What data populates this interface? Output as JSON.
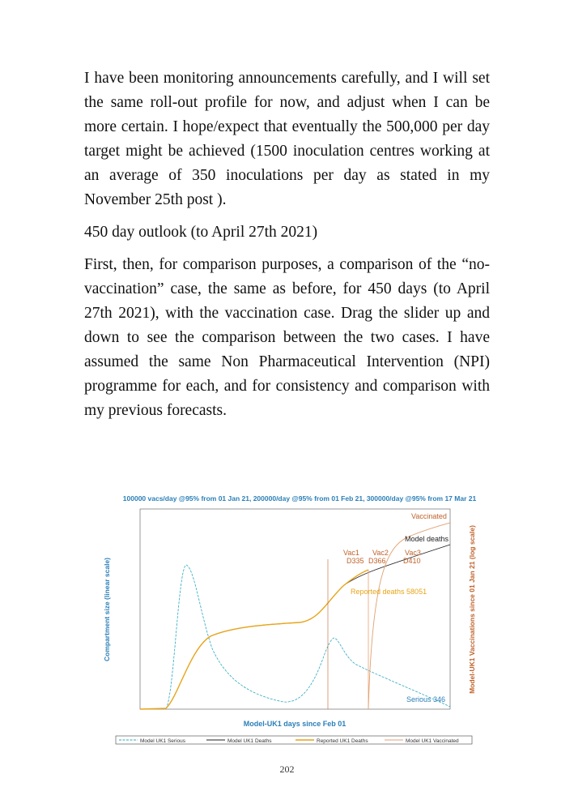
{
  "paragraphs": [
    "I have been monitoring announcements carefully, and I will set the same roll-out profile for now, and adjust when I can be more certain. I hope/expect that eventually the 500,000 per day target might be achieved (1500 inoculation centres working at an average of 350 inoculations per day as stated in my November 25th post ).",
    "450 day outlook (to April 27th 2021)",
    "First, then, for comparison purposes, a comparison of the “no-vaccination” case, the same as before, for 450 days (to April 27th 2021), with the vaccination case. Drag the slider up and down to see the comparison between the two cases. I have assumed the same Non Pharmaceutical Intervention (NPI) programme for each, and for consistency and comparison with my previous forecasts."
  ],
  "figure": {
    "title": "100000 vacs/day @95% from 01 Jan 21, 200000/day @95% from 01 Feb 21, 300000/day @95% from 17 Mar 21",
    "y_label": "Compartment size (linear scale)",
    "y2_label": "Model-UK1 Vaccinations since 01 Jan 21 (log scale)",
    "x_label": "Model-UK1 days since Feb 01",
    "annotations": [
      "Vaccinated",
      "Model deaths",
      "Vac1",
      "Vac2",
      "Vac3",
      "D335",
      "D366",
      "D410",
      "Reported deaths 58051",
      "Serious 346"
    ],
    "legend": [
      "Model UK1 Serious",
      "Model UK1 Deaths",
      "Reported UK1 Deaths",
      "Model UK1 Vaccinated"
    ]
  },
  "page_number": "202"
}
